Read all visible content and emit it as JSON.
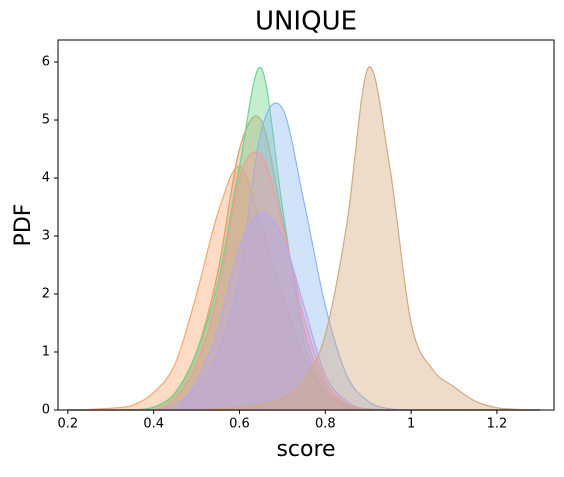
{
  "chart_data": {
    "type": "area",
    "title": "UNIQUE",
    "x_label": "score",
    "y_label": "PDF",
    "x": [
      0.2,
      0.25,
      0.3,
      0.35,
      0.4,
      0.45,
      0.5,
      0.55,
      0.6,
      0.65,
      0.7,
      0.75,
      0.8,
      0.85,
      0.9,
      0.95,
      1.0,
      1.05,
      1.1,
      1.15,
      1.2,
      1.25,
      1.3
    ],
    "series": [
      {
        "color": "#f9a66c",
        "values": [
          0,
          0.01,
          0.03,
          0.08,
          0.3,
          0.8,
          2.0,
          3.4,
          4.2,
          3.2,
          2.0,
          0.9,
          0.3,
          0.08,
          0.02,
          0,
          0,
          0,
          0,
          0,
          0,
          0,
          0
        ]
      },
      {
        "color": "#d9a070",
        "values": [
          0,
          0,
          0,
          0,
          0.05,
          0.3,
          1.0,
          2.4,
          4.5,
          5.0,
          3.3,
          1.4,
          0.4,
          0.08,
          0,
          0,
          0,
          0,
          0,
          0,
          0,
          0,
          0
        ]
      },
      {
        "color": "#6fd38a",
        "values": [
          0,
          0,
          0,
          0,
          0.05,
          0.3,
          1.0,
          2.2,
          4.2,
          5.9,
          3.5,
          1.2,
          0.3,
          0.05,
          0,
          0,
          0,
          0,
          0,
          0,
          0,
          0,
          0
        ]
      },
      {
        "color": "#8ab8f0",
        "values": [
          0,
          0,
          0,
          0,
          0,
          0.1,
          0.4,
          1.0,
          2.3,
          4.8,
          5.2,
          3.6,
          1.8,
          0.6,
          0.15,
          0.02,
          0,
          0,
          0,
          0,
          0,
          0,
          0
        ]
      },
      {
        "color": "#f49a9a",
        "values": [
          0,
          0,
          0,
          0,
          0,
          0.2,
          0.8,
          2.0,
          4.0,
          4.4,
          3.2,
          1.6,
          0.5,
          0.1,
          0,
          0,
          0,
          0,
          0,
          0,
          0,
          0,
          0
        ]
      },
      {
        "color": "#b8a4f0",
        "values": [
          0,
          0,
          0,
          0,
          0,
          0,
          0.5,
          1.4,
          2.8,
          3.4,
          3.0,
          1.8,
          0.6,
          0.15,
          0,
          0,
          0,
          0,
          0,
          0,
          0,
          0,
          0
        ]
      },
      {
        "color": "#d4a87e",
        "values": [
          0,
          0,
          0,
          0,
          0,
          0,
          0,
          0.02,
          0.05,
          0.1,
          0.2,
          0.5,
          1.3,
          3.2,
          5.9,
          4.2,
          1.5,
          0.7,
          0.4,
          0.15,
          0.04,
          0.01,
          0
        ]
      }
    ],
    "xlim": [
      0.177,
      1.333
    ],
    "ylim": [
      0,
      6.38
    ],
    "xticks": [
      0.2,
      0.4,
      0.6,
      0.8,
      1.0,
      1.2
    ],
    "yticks": [
      0,
      1,
      2,
      3,
      4,
      5,
      6
    ]
  }
}
